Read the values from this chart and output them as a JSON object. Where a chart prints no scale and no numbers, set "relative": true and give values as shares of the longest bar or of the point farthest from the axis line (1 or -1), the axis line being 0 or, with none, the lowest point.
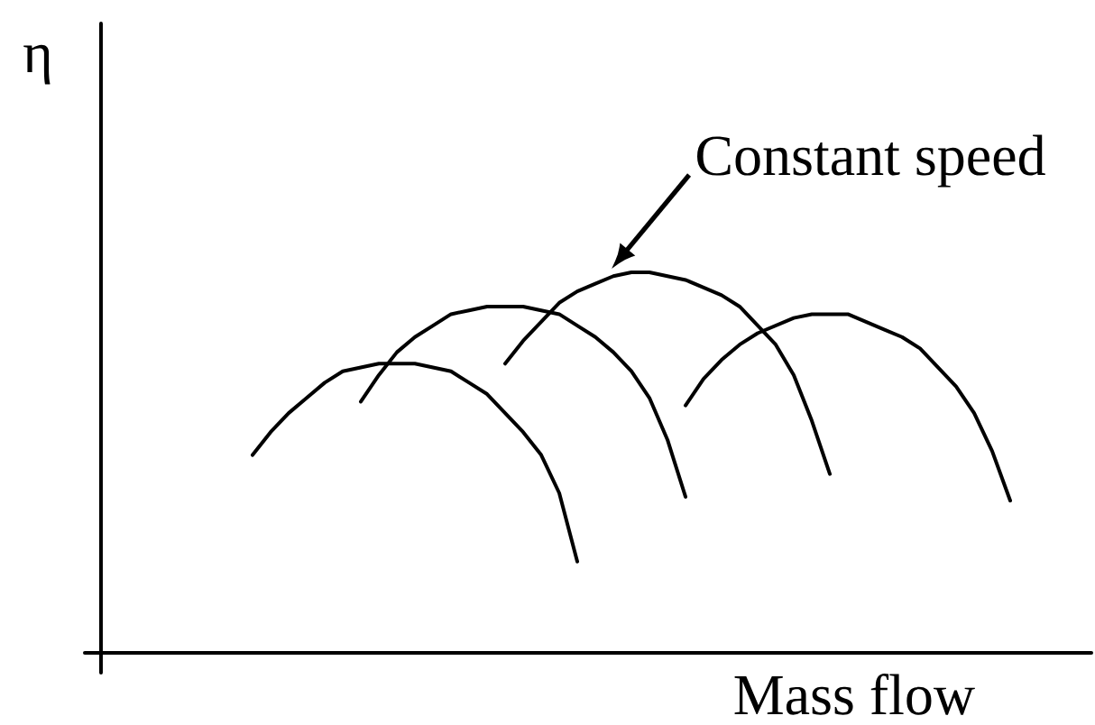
{
  "chart_data": {
    "type": "line",
    "relative": true,
    "xlabel": "Mass flow",
    "ylabel": "η",
    "annotations": [
      "Constant speed"
    ],
    "marker": "none",
    "line_style": "solid",
    "categories": [
      null,
      null,
      null,
      null,
      null,
      null,
      null,
      null,
      null,
      null,
      null,
      null,
      null,
      null,
      null,
      null,
      null,
      null,
      null,
      null,
      null,
      null,
      null,
      null,
      null,
      null,
      null,
      null,
      null,
      null,
      null,
      null,
      null,
      null,
      null,
      null,
      null,
      null,
      null,
      null,
      null,
      null,
      null,
      null,
      null,
      null,
      null,
      null,
      null,
      null,
      null,
      null,
      null,
      null,
      null
    ],
    "series": [
      {
        "color": "#000000",
        "values": [
          null,
          null,
          null,
          null,
          null,
          null,
          null,
          null,
          0.52,
          0.58,
          0.63,
          0.67,
          0.71,
          0.74,
          0.75,
          0.76,
          0.76,
          0.76,
          0.75,
          0.74,
          0.71,
          0.68,
          0.63,
          0.58,
          0.52,
          0.42,
          0.24,
          null,
          null,
          null,
          null,
          null,
          null,
          null,
          null,
          null,
          null,
          null,
          null,
          null,
          null,
          null,
          null,
          null,
          null,
          null,
          null,
          null,
          null,
          null,
          null,
          null,
          null,
          null,
          null
        ]
      },
      {
        "color": "#000000",
        "values": [
          null,
          null,
          null,
          null,
          null,
          null,
          null,
          null,
          null,
          null,
          null,
          null,
          null,
          null,
          0.66,
          0.73,
          0.79,
          0.83,
          0.86,
          0.89,
          0.9,
          0.91,
          0.91,
          0.91,
          0.9,
          0.89,
          0.86,
          0.83,
          0.79,
          0.74,
          0.67,
          0.56,
          0.41,
          null,
          null,
          null,
          null,
          null,
          null,
          null,
          null,
          null,
          null,
          null,
          null,
          null,
          null,
          null,
          null,
          null,
          null,
          null,
          null,
          null,
          null
        ]
      },
      {
        "color": "#000000",
        "values": [
          null,
          null,
          null,
          null,
          null,
          null,
          null,
          null,
          null,
          null,
          null,
          null,
          null,
          null,
          null,
          null,
          null,
          null,
          null,
          null,
          null,
          null,
          0.76,
          0.82,
          0.87,
          0.92,
          0.95,
          0.97,
          0.99,
          1.0,
          1.0,
          0.99,
          0.98,
          0.96,
          0.94,
          0.91,
          0.86,
          0.81,
          0.73,
          0.61,
          0.47,
          null,
          null,
          null,
          null,
          null,
          null,
          null,
          null,
          null,
          null,
          null,
          null,
          null,
          null
        ]
      },
      {
        "color": "#000000",
        "values": [
          null,
          null,
          null,
          null,
          null,
          null,
          null,
          null,
          null,
          null,
          null,
          null,
          null,
          null,
          null,
          null,
          null,
          null,
          null,
          null,
          null,
          null,
          null,
          null,
          null,
          null,
          null,
          null,
          null,
          null,
          null,
          null,
          0.65,
          0.72,
          0.77,
          0.81,
          0.84,
          0.86,
          0.88,
          0.89,
          0.89,
          0.89,
          0.87,
          0.85,
          0.83,
          0.8,
          0.75,
          0.7,
          0.63,
          0.53,
          0.4,
          null,
          null,
          null,
          null
        ]
      }
    ]
  }
}
